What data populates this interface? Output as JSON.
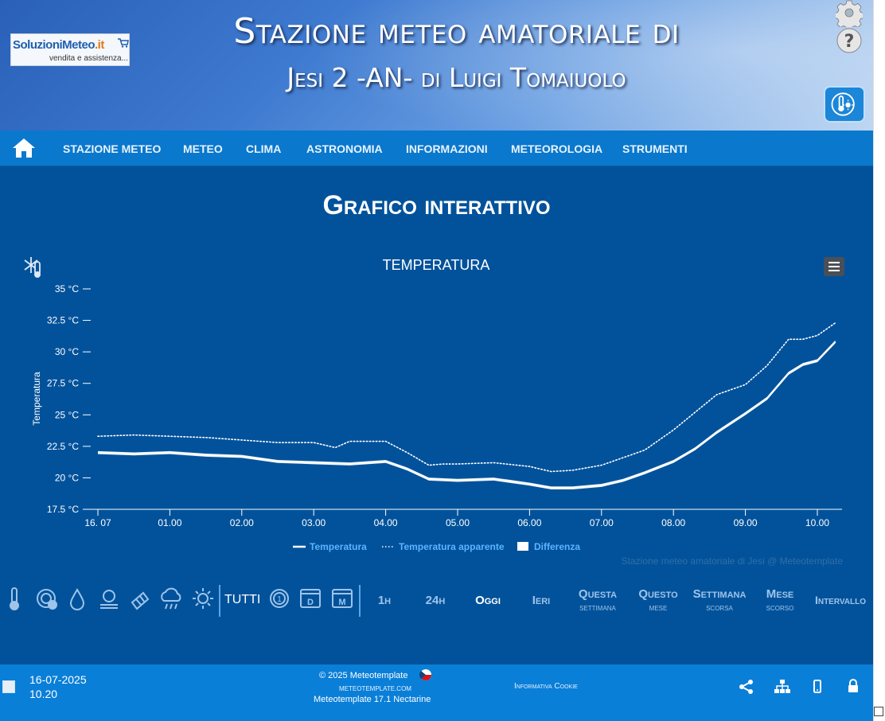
{
  "header": {
    "logo_main": "SoluzioniMeteo",
    "logo_suffix": ".it",
    "logo_tagline": "vendita e assistenza...",
    "title_line1": "Stazione meteo amatoriale di",
    "title_line2": "Jesi 2 -AN- di Luigi Tomaiuolo",
    "icons": [
      "gear-icon",
      "help-icon",
      "weather-station-icon"
    ]
  },
  "nav": {
    "items": [
      "STAZIONE METEO",
      "METEO",
      "CLIMA",
      "ASTRONOMIA",
      "INFORMAZIONI",
      "METEOROLOGIA",
      "STRUMENTI"
    ]
  },
  "page": {
    "title": "Grafico interattivo",
    "credit": "Stazione meteo amatoriale di Jesi @ Meteotemplate"
  },
  "chart_data": {
    "type": "line",
    "title": "TEMPERATURA",
    "ylabel": "Temperatura",
    "ylim": [
      17.5,
      35
    ],
    "y_ticks": [
      "35 °C",
      "32.5 °C",
      "30 °C",
      "27.5 °C",
      "25 °C",
      "22.5 °C",
      "20 °C",
      "17.5 °C"
    ],
    "x_ticks": [
      "16. 07",
      "01.00",
      "02.00",
      "03.00",
      "04.00",
      "05.00",
      "06.00",
      "07.00",
      "08.00",
      "09.00",
      "10.00"
    ],
    "x_unit": "hours after 16-07-2025 00:00",
    "series": [
      {
        "name": "Temperatura",
        "style": "solid",
        "x": [
          0,
          0.5,
          1,
          1.5,
          2,
          2.5,
          3,
          3.5,
          4,
          4.3,
          4.6,
          5,
          5.5,
          6,
          6.3,
          6.6,
          7,
          7.3,
          7.6,
          8,
          8.3,
          8.6,
          9,
          9.3,
          9.6,
          9.8,
          10,
          10.25
        ],
        "values": [
          22.0,
          21.9,
          22.0,
          21.8,
          21.7,
          21.3,
          21.2,
          21.1,
          21.3,
          20.7,
          19.9,
          19.8,
          19.9,
          19.5,
          19.2,
          19.2,
          19.4,
          19.8,
          20.4,
          21.3,
          22.3,
          23.6,
          25.1,
          26.3,
          28.3,
          29.0,
          29.3,
          30.8
        ]
      },
      {
        "name": "Temperatura apparente",
        "style": "dotted",
        "x": [
          0,
          0.5,
          1,
          1.5,
          2,
          2.5,
          3,
          3.3,
          3.5,
          4,
          4.3,
          4.6,
          4.8,
          5,
          5.5,
          6,
          6.3,
          6.6,
          7,
          7.3,
          7.6,
          8,
          8.3,
          8.6,
          9,
          9.3,
          9.6,
          9.8,
          10,
          10.25
        ],
        "values": [
          23.3,
          23.4,
          23.3,
          23.2,
          23.0,
          22.8,
          22.8,
          22.4,
          22.9,
          22.9,
          22.0,
          21.0,
          21.1,
          21.1,
          21.2,
          20.9,
          20.5,
          20.6,
          21.0,
          21.6,
          22.2,
          23.8,
          25.2,
          26.6,
          27.4,
          28.9,
          31.0,
          31.0,
          31.3,
          32.3
        ]
      }
    ],
    "legend": [
      "Temperatura",
      "Temperatura apparente",
      "Differenza"
    ],
    "legend_position": "bottom-center"
  },
  "toolbar": {
    "icon_buttons": [
      "thermometer-icon",
      "pressure-gauge-icon",
      "humidity-drop-icon",
      "rain-gauge-icon",
      "wind-sock-icon",
      "rain-cloud-icon",
      "sun-icon"
    ],
    "tutti": "TUTTI",
    "period_icons": [
      "day-one-icon",
      "calendar-day-icon",
      "calendar-month-icon"
    ],
    "periods": [
      {
        "a": "1h",
        "b": ""
      },
      {
        "a": "24h",
        "b": ""
      },
      {
        "a": "Oggi",
        "b": ""
      },
      {
        "a": "Ieri",
        "b": ""
      },
      {
        "a": "Questa",
        "b": "settimana"
      },
      {
        "a": "Questo",
        "b": "mese"
      },
      {
        "a": "Settimana",
        "b": "scorsa"
      },
      {
        "a": "Mese",
        "b": "scorso"
      },
      {
        "a": "Intervallo",
        "b": ""
      }
    ]
  },
  "footer": {
    "date": "16-07-2025",
    "time": "10.20",
    "copyright": "© 2025  Meteotemplate",
    "site": "meteotemplate.com",
    "version": "Meteotemplate 17.1 Nectarine",
    "cookie": "Informativa Cookie",
    "icons": [
      "share-icon",
      "sitemap-icon",
      "mobile-icon",
      "lock-icon"
    ]
  },
  "colors": {
    "header_start": "#2a60b8",
    "nav_bg": "#0a78cc",
    "main_bg": "#02529b",
    "legend_label": "#5ab4ff",
    "footer_bg": "#0a7fd8"
  }
}
